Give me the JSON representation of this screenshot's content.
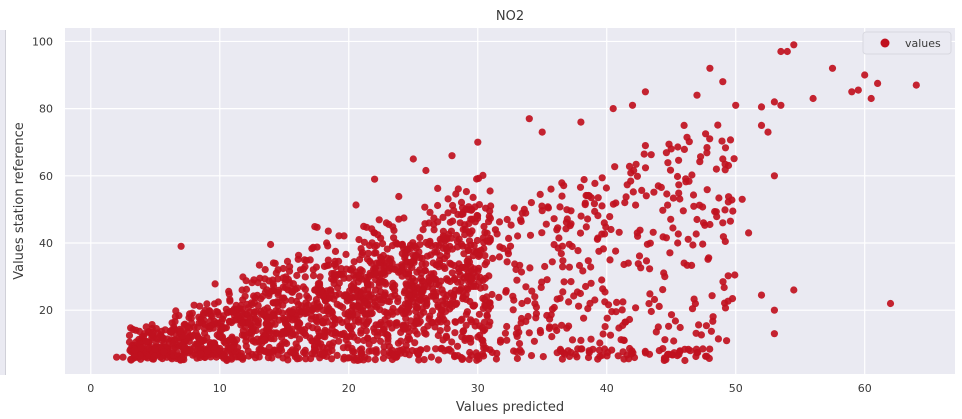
{
  "chart_data": {
    "type": "scatter",
    "title": "NO2",
    "xlabel": "Values predicted",
    "ylabel": "Values station reference",
    "xlim": [
      -2,
      67
    ],
    "ylim": [
      1,
      104
    ],
    "xticks": [
      0,
      10,
      20,
      30,
      40,
      50,
      60
    ],
    "yticks": [
      20,
      40,
      60,
      80,
      100
    ],
    "grid": true,
    "legend": {
      "entries": [
        "values"
      ],
      "placement": "top-right"
    },
    "series": [
      {
        "name": "values",
        "color": "#c0111f",
        "points": [
          [
            7,
            39
          ],
          [
            62,
            22
          ],
          [
            64,
            87
          ],
          [
            57.5,
            92
          ],
          [
            53.5,
            97
          ],
          [
            54.5,
            99
          ],
          [
            54,
            97
          ],
          [
            56,
            83
          ],
          [
            59,
            85
          ],
          [
            59.5,
            85.5
          ],
          [
            60,
            90
          ],
          [
            60.5,
            83
          ],
          [
            61,
            87.5
          ],
          [
            52,
            80.5
          ],
          [
            53,
            82
          ],
          [
            53.5,
            81
          ],
          [
            50,
            81
          ],
          [
            51,
            43
          ],
          [
            50.5,
            53
          ],
          [
            52,
            75
          ],
          [
            52.5,
            73
          ],
          [
            53,
            60
          ],
          [
            53,
            20
          ],
          [
            53,
            13
          ],
          [
            54.5,
            26
          ],
          [
            52,
            24.5
          ],
          [
            48,
            92
          ],
          [
            49,
            88
          ],
          [
            47,
            84
          ],
          [
            47,
            47
          ],
          [
            47.5,
            46
          ],
          [
            48,
            45.5
          ],
          [
            44,
            15
          ],
          [
            44.5,
            30
          ],
          [
            45.5,
            40
          ],
          [
            46,
            34
          ],
          [
            49,
            46
          ],
          [
            48.5,
            62
          ],
          [
            49,
            65
          ],
          [
            46,
            75
          ],
          [
            45,
            68
          ],
          [
            43,
            69
          ],
          [
            44,
            57
          ],
          [
            42,
            81
          ],
          [
            40.5,
            80
          ],
          [
            43,
            85
          ],
          [
            38,
            76
          ],
          [
            35,
            73
          ],
          [
            30,
            70
          ],
          [
            28,
            66
          ],
          [
            31,
            51
          ],
          [
            25,
            65
          ],
          [
            22,
            59
          ],
          [
            34,
            77
          ],
          [
            38,
            11
          ],
          [
            36,
            15
          ],
          [
            33,
            13
          ],
          [
            30,
            12
          ],
          [
            29,
            11
          ],
          [
            3,
            12.5
          ],
          [
            3,
            10.5
          ],
          [
            2,
            6
          ],
          [
            2.5,
            6
          ],
          [
            3.5,
            14
          ]
        ]
      }
    ]
  }
}
